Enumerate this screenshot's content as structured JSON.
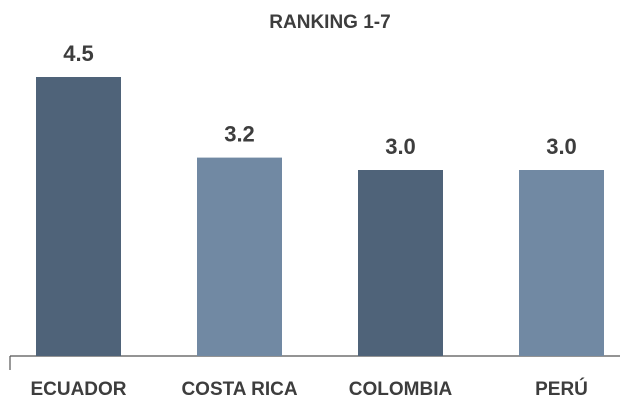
{
  "chart_data": {
    "type": "bar",
    "title": "RANKING 1-7",
    "categories": [
      "ECUADOR",
      "COSTA RICA",
      "COLOMBIA",
      "PERÚ"
    ],
    "values": [
      4.5,
      3.2,
      3.0,
      3.0
    ],
    "value_labels": [
      "4.5",
      "3.2",
      "3.0",
      "3.0"
    ],
    "colors": [
      "#4f6379",
      "#7189a3",
      "#4f6379",
      "#7189a3"
    ]
  }
}
